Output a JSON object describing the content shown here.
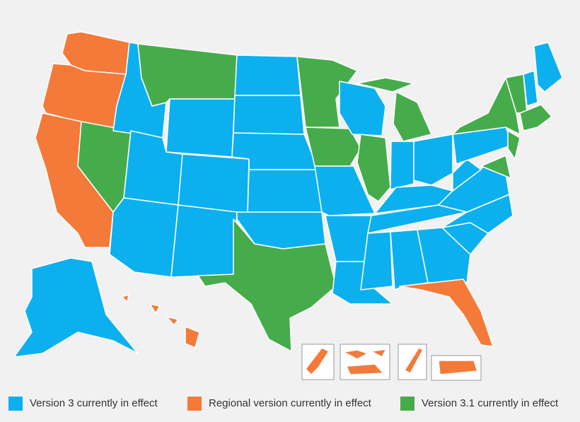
{
  "legend": {
    "items": [
      {
        "label": "Version 3 currently in effect",
        "color": "#0db0ee"
      },
      {
        "label": "Regional version currently in effect",
        "color": "#f47a3a"
      },
      {
        "label": "Version 3.1 currently in effect",
        "color": "#46ac4b"
      }
    ]
  }
}
